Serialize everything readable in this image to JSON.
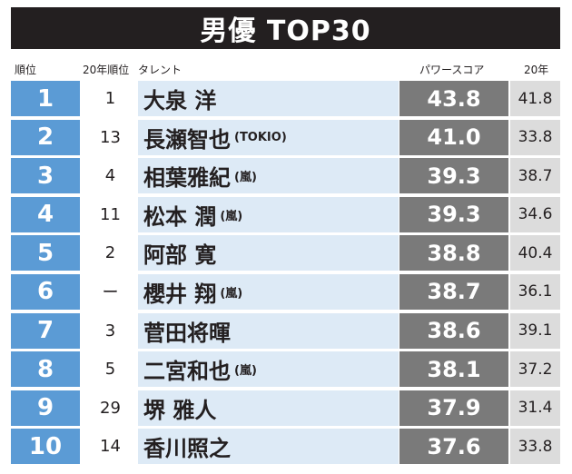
{
  "title": "男優 TOP30",
  "headers": {
    "rank": "順位",
    "prev_rank": "20年順位",
    "talent": "タレント",
    "power_score": "パワースコア",
    "prev_score": "20年"
  },
  "rows": [
    {
      "rank": "1",
      "prev_rank": "1",
      "name": "大泉 洋",
      "group": "",
      "power": "43.8",
      "prev_score": "41.8"
    },
    {
      "rank": "2",
      "prev_rank": "13",
      "name": "長瀬智也",
      "group": "(TOKIO)",
      "power": "41.0",
      "prev_score": "33.8"
    },
    {
      "rank": "3",
      "prev_rank": "4",
      "name": "相葉雅紀",
      "group": "(嵐)",
      "power": "39.3",
      "prev_score": "38.7"
    },
    {
      "rank": "4",
      "prev_rank": "11",
      "name": "松本 潤",
      "group": "(嵐)",
      "power": "39.3",
      "prev_score": "34.6"
    },
    {
      "rank": "5",
      "prev_rank": "2",
      "name": "阿部 寛",
      "group": "",
      "power": "38.8",
      "prev_score": "40.4"
    },
    {
      "rank": "6",
      "prev_rank": "ー",
      "name": "櫻井 翔",
      "group": "(嵐)",
      "power": "38.7",
      "prev_score": "36.1"
    },
    {
      "rank": "7",
      "prev_rank": "3",
      "name": "菅田将暉",
      "group": "",
      "power": "38.6",
      "prev_score": "39.1"
    },
    {
      "rank": "8",
      "prev_rank": "5",
      "name": "二宮和也",
      "group": "(嵐)",
      "power": "38.1",
      "prev_score": "37.2"
    },
    {
      "rank": "9",
      "prev_rank": "29",
      "name": "堺 雅人",
      "group": "",
      "power": "37.9",
      "prev_score": "31.4"
    },
    {
      "rank": "10",
      "prev_rank": "14",
      "name": "香川照之",
      "group": "",
      "power": "37.6",
      "prev_score": "33.8"
    }
  ]
}
